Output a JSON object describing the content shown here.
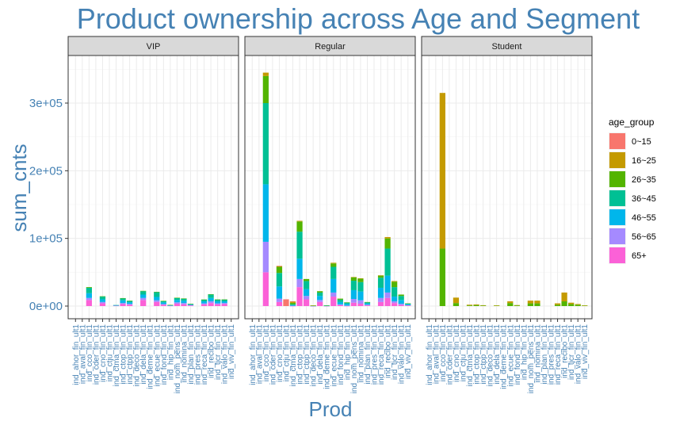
{
  "chart_data": {
    "type": "bar",
    "stacked": true,
    "title": "Product ownership across Age and Segment",
    "xlabel": "Prod",
    "ylabel": "sum_cnts",
    "ylim": [
      0,
      360000
    ],
    "yticks": [
      0,
      100000,
      200000,
      300000
    ],
    "ytick_labels": [
      "0e+00",
      "1e+05",
      "2e+05",
      "3e+05"
    ],
    "grid": true,
    "legend_position": "right",
    "legend_title": "age_group",
    "age_groups": [
      "0~15",
      "16~25",
      "26~35",
      "36~45",
      "46~55",
      "56~65",
      "65+"
    ],
    "colors": [
      "#F8766D",
      "#C49A00",
      "#53B400",
      "#00C094",
      "#00B6EB",
      "#A58AFF",
      "#FB61D7"
    ],
    "categories": [
      "ind_ahor_fin_ult1",
      "ind_aval_fin_ult1",
      "ind_cco_fin_ult1",
      "ind_cder_fin_ult1",
      "ind_cno_fin_ult1",
      "ind_ctju_fin_ult1",
      "ind_ctma_fin_ult1",
      "ind_ctop_fin_ult1",
      "ind_ctpp_fin_ult1",
      "ind_deco_fin_ult1",
      "ind_dela_fin_ult1",
      "ind_deme_fin_ult1",
      "ind_ecue_fin_ult1",
      "ind_fond_fin_ult1",
      "ind_hip_fin_ult1",
      "ind_nom_pens_ult1",
      "ind_nomina_ult1",
      "ind_plan_fin_ult1",
      "ind_pres_fin_ult1",
      "ind_reca_fin_ult1",
      "ind_recibo_ult1",
      "ind_tjcr_fin_ult1",
      "ind_valo_fin_ult1",
      "ind_viv_fin_ult1"
    ],
    "panels": [
      {
        "name": "VIP",
        "values": [
          [
            0,
            0,
            0,
            0,
            0,
            0,
            0
          ],
          [
            0,
            0,
            0,
            0,
            0,
            0,
            0
          ],
          [
            0,
            0,
            1000,
            8000,
            7000,
            3000,
            9000
          ],
          [
            0,
            0,
            0,
            0,
            0,
            0,
            0
          ],
          [
            0,
            0,
            500,
            4000,
            4000,
            2000,
            4000
          ],
          [
            0,
            0,
            0,
            0,
            0,
            0,
            0
          ],
          [
            0,
            0,
            0,
            200,
            500,
            300,
            500
          ],
          [
            0,
            0,
            300,
            3000,
            4000,
            1500,
            3000
          ],
          [
            0,
            0,
            200,
            2000,
            2500,
            1200,
            2000
          ],
          [
            0,
            0,
            0,
            0,
            0,
            0,
            0
          ],
          [
            0,
            0,
            500,
            5000,
            5000,
            3000,
            9000
          ],
          [
            0,
            0,
            0,
            0,
            0,
            0,
            0
          ],
          [
            0,
            0,
            500,
            7000,
            5000,
            2500,
            6000
          ],
          [
            0,
            0,
            200,
            2000,
            2500,
            1000,
            2000
          ],
          [
            0,
            0,
            100,
            500,
            400,
            200,
            500
          ],
          [
            0,
            0,
            300,
            3000,
            3500,
            2000,
            3500
          ],
          [
            0,
            0,
            300,
            3000,
            3500,
            2000,
            2500
          ],
          [
            0,
            0,
            100,
            800,
            1000,
            500,
            1000
          ],
          [
            0,
            0,
            0,
            0,
            0,
            0,
            0
          ],
          [
            0,
            0,
            200,
            2500,
            3000,
            1500,
            2500
          ],
          [
            0,
            0,
            500,
            5000,
            5000,
            2500,
            4500
          ],
          [
            0,
            0,
            300,
            2500,
            3000,
            1500,
            2500
          ],
          [
            0,
            0,
            300,
            2500,
            2500,
            1500,
            3000
          ],
          [
            0,
            0,
            0,
            0,
            0,
            0,
            0
          ]
        ]
      },
      {
        "name": "Regular",
        "values": [
          [
            0,
            0,
            0,
            0,
            0,
            0,
            0
          ],
          [
            0,
            0,
            0,
            0,
            0,
            0,
            0
          ],
          [
            0,
            5000,
            40000,
            120000,
            85000,
            45000,
            50000
          ],
          [
            0,
            0,
            0,
            0,
            0,
            0,
            0
          ],
          [
            500,
            1000,
            9000,
            20000,
            18000,
            5000,
            6000
          ],
          [
            10000,
            0,
            0,
            0,
            0,
            0,
            0
          ],
          [
            200,
            2000,
            2000,
            1500,
            800,
            300,
            200
          ],
          [
            0,
            1000,
            15000,
            40000,
            30000,
            12000,
            28000
          ],
          [
            0,
            0,
            3000,
            12000,
            10000,
            5000,
            10000
          ],
          [
            0,
            200,
            200,
            200,
            200,
            100,
            100
          ],
          [
            0,
            0,
            2000,
            5000,
            6000,
            3000,
            6000
          ],
          [
            0,
            0,
            100,
            300,
            300,
            100,
            200
          ],
          [
            0,
            1000,
            5000,
            18000,
            20000,
            6000,
            14000
          ],
          [
            0,
            0,
            1500,
            3500,
            3500,
            1200,
            1300
          ],
          [
            0,
            0,
            300,
            2000,
            2500,
            500,
            200
          ],
          [
            0,
            500,
            5000,
            14000,
            13000,
            5500,
            5000
          ],
          [
            0,
            500,
            5000,
            14000,
            13000,
            5000,
            3500
          ],
          [
            0,
            0,
            500,
            1500,
            2000,
            1000,
            1000
          ],
          [
            0,
            0,
            0,
            0,
            0,
            0,
            0
          ],
          [
            0,
            500,
            3000,
            15000,
            15000,
            6000,
            6000
          ],
          [
            0,
            2000,
            15000,
            40000,
            25000,
            8000,
            12000
          ],
          [
            0,
            1000,
            8000,
            14000,
            7000,
            2500,
            4500
          ],
          [
            0,
            0,
            2000,
            6000,
            5500,
            2000,
            1500
          ],
          [
            0,
            0,
            200,
            1000,
            1500,
            600,
            700
          ]
        ]
      },
      {
        "name": "Student",
        "values": [
          [
            0,
            0,
            0,
            0,
            0,
            0,
            0
          ],
          [
            0,
            0,
            0,
            0,
            0,
            0,
            0
          ],
          [
            0,
            230000,
            85000,
            0,
            0,
            0,
            0
          ],
          [
            0,
            0,
            0,
            0,
            0,
            0,
            0
          ],
          [
            0,
            8000,
            4500,
            0,
            0,
            0,
            0
          ],
          [
            0,
            0,
            0,
            0,
            0,
            0,
            0
          ],
          [
            0,
            1000,
            1000,
            0,
            0,
            0,
            0
          ],
          [
            0,
            1000,
            1500,
            0,
            0,
            0,
            0
          ],
          [
            0,
            500,
            800,
            0,
            0,
            0,
            0
          ],
          [
            0,
            0,
            0,
            0,
            0,
            0,
            0
          ],
          [
            0,
            300,
            700,
            0,
            0,
            0,
            0
          ],
          [
            0,
            0,
            0,
            0,
            0,
            0,
            0
          ],
          [
            0,
            2500,
            4500,
            0,
            0,
            0,
            0
          ],
          [
            0,
            500,
            1000,
            0,
            0,
            0,
            0
          ],
          [
            0,
            0,
            0,
            0,
            0,
            0,
            0
          ],
          [
            0,
            4000,
            4000,
            0,
            0,
            0,
            0
          ],
          [
            0,
            4000,
            4000,
            0,
            0,
            0,
            0
          ],
          [
            0,
            0,
            0,
            0,
            0,
            0,
            0
          ],
          [
            0,
            0,
            0,
            0,
            0,
            0,
            0
          ],
          [
            0,
            2000,
            2000,
            0,
            0,
            0,
            0
          ],
          [
            0,
            13000,
            7000,
            0,
            0,
            0,
            0
          ],
          [
            0,
            2000,
            3000,
            0,
            0,
            0,
            0
          ],
          [
            0,
            1000,
            2000,
            0,
            0,
            0,
            0
          ],
          [
            0,
            300,
            700,
            0,
            0,
            0,
            0
          ]
        ]
      }
    ]
  }
}
